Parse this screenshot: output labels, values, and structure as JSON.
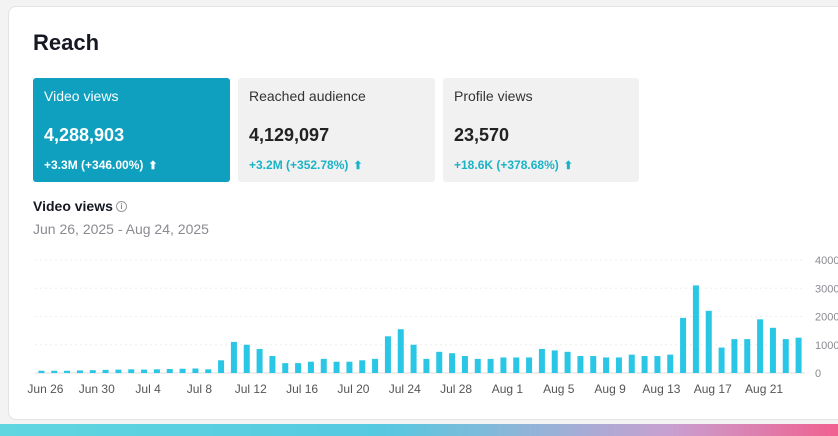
{
  "title": "Reach",
  "metrics": [
    {
      "label": "Video views",
      "value": "4,288,903",
      "change": "+3.3M  (+346.00%)"
    },
    {
      "label": "Reached audience",
      "value": "4,129,097",
      "change": "+3.2M  (+352.78%)"
    },
    {
      "label": "Profile views",
      "value": "23,570",
      "change": "+18.6K  (+378.68%)"
    }
  ],
  "chart_section": {
    "title": "Video views",
    "date_range": "Jun 26, 2025 - Aug 24, 2025"
  },
  "colors": {
    "accent": "#0f9fbf",
    "bar": "#29c6e6",
    "positive": "#1ab3c6"
  },
  "chart_data": {
    "type": "bar",
    "ylim": [
      0,
      4000
    ],
    "y_ticks": [
      "4000",
      "3000",
      "2000",
      "1000",
      "0"
    ],
    "y_tick_values": [
      4000,
      3000,
      2000,
      1000,
      0
    ],
    "x_tick_labels": [
      "Jun 26",
      "Jun 30",
      "Jul 4",
      "Jul 8",
      "Jul 12",
      "Jul 16",
      "Jul 20",
      "Jul 24",
      "Jul 28",
      "Aug 1",
      "Aug 5",
      "Aug 9",
      "Aug 13",
      "Aug 17",
      "Aug 21"
    ],
    "grid": true,
    "values": [
      80,
      80,
      80,
      90,
      100,
      110,
      120,
      130,
      120,
      130,
      140,
      150,
      160,
      130,
      450,
      1100,
      1000,
      850,
      600,
      350,
      350,
      400,
      500,
      400,
      400,
      450,
      500,
      1300,
      1550,
      1000,
      500,
      750,
      700,
      600,
      500,
      500,
      550,
      550,
      550,
      850,
      800,
      750,
      600,
      600,
      550,
      550,
      650,
      600,
      600,
      650,
      1950,
      3100,
      2200,
      900,
      1200,
      1200,
      1900,
      1600,
      1200,
      1250
    ]
  }
}
